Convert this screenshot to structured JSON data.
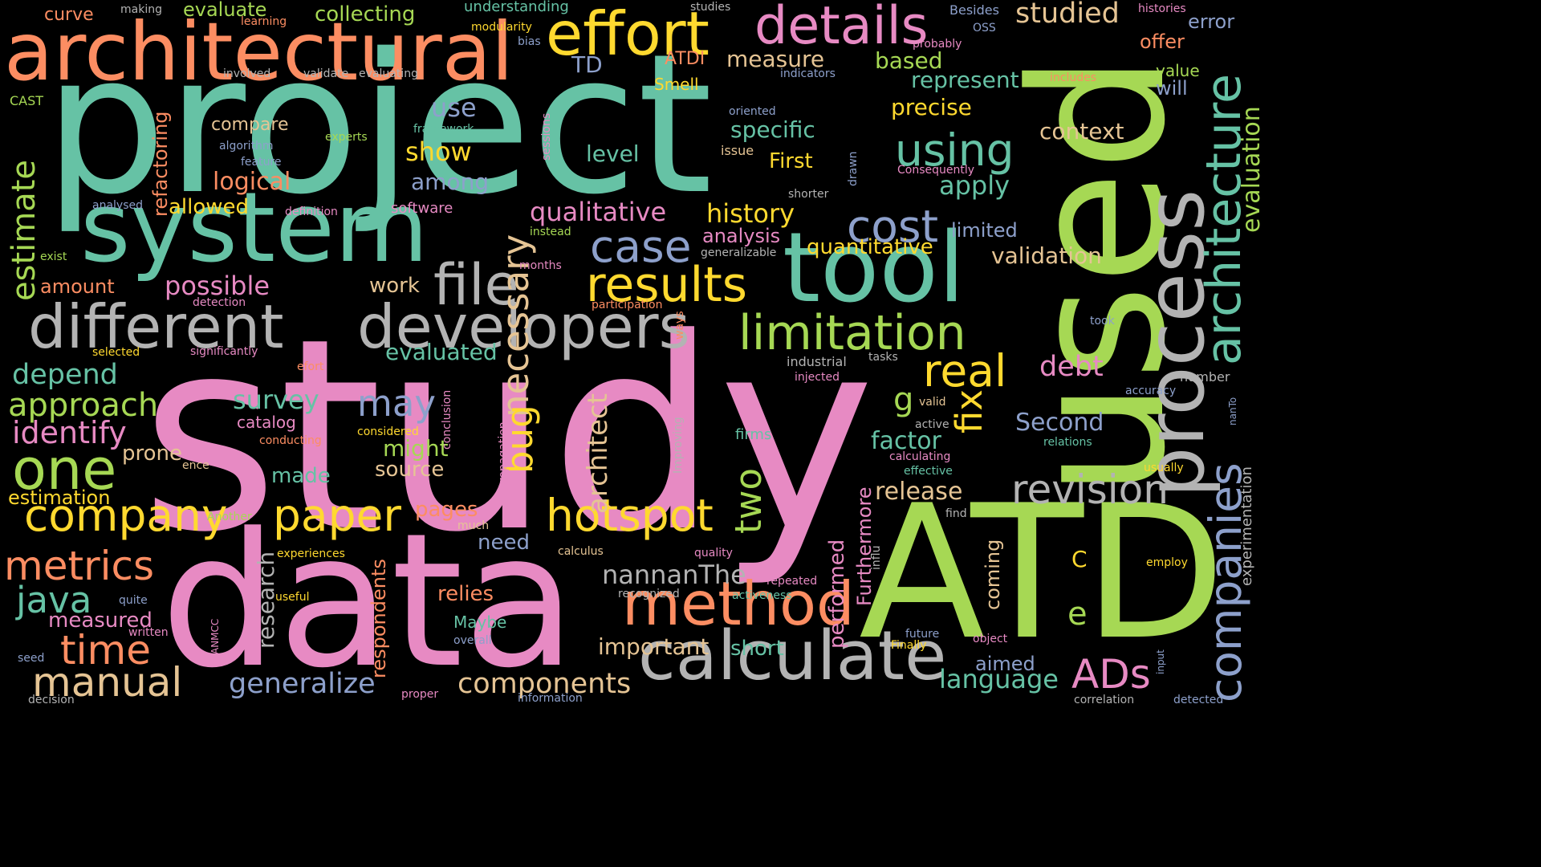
{
  "palette": {
    "pink": "#e78ac3",
    "teal": "#66c2a5",
    "lime": "#a6d854",
    "yellow": "#ffd92f",
    "orange": "#fc8d62",
    "lavender": "#8da0cb",
    "gray": "#b3b3b3",
    "tan": "#e5c494"
  },
  "words": [
    "study",
    "project",
    "ATD",
    "data",
    "used",
    "system",
    "tool",
    "architectural",
    "process",
    "calculate",
    "effort",
    "different",
    "developers",
    "method",
    "file",
    "details",
    "results",
    "limitation",
    "architecture",
    "revision",
    "hotspot",
    "companies",
    "company",
    "cost",
    "one",
    "paper",
    "case",
    "using",
    "real",
    "metrics",
    "time",
    "manual",
    "java",
    "approach",
    "ADs",
    "fix",
    "necessary",
    "bug",
    "two",
    "may",
    "identify",
    "depend",
    "estimate",
    "generalize",
    "components",
    "studied",
    "evaluation",
    "possible",
    "history",
    "language",
    "release",
    "survey",
    "nannanThe",
    "evaluated",
    "important",
    "qualitative",
    "logical",
    "quantitative",
    "validation",
    "factor",
    "debt",
    "architect",
    "research",
    "performed",
    "respondents",
    "Second",
    "apply",
    "precise",
    "represent",
    "context",
    "show",
    "among",
    "use",
    "measure",
    "allowed",
    "refactoring",
    "amount",
    "estimation",
    "measured",
    "might",
    "source",
    "made",
    "pages",
    "relies",
    "Maybe",
    "need",
    "prone",
    "work",
    "level",
    "specific",
    "First",
    "analysis",
    "limited",
    "short",
    "aimed",
    "coming",
    "Furthermore",
    "collecting",
    "evaluate",
    "curve",
    "understanding",
    "based",
    "TD",
    "ATDI",
    "Smell",
    "offer",
    "error",
    "will",
    "value",
    "compare",
    "experimentation",
    "g",
    "C",
    "e",
    "making",
    "learning",
    "studies",
    "modularity",
    "bias",
    "involved",
    "validate",
    "evaluating",
    "indicators",
    "CAST",
    "algorithm",
    "feature",
    "framework",
    "experts",
    "oriented",
    "issue",
    "sessions",
    "drawn",
    "Consequently",
    "shorter",
    "analysed",
    "definition",
    "software",
    "instead",
    "generalizable",
    "exist",
    "months",
    "detection",
    "participation",
    "ways",
    "took",
    "selected",
    "significantly",
    "efort",
    "industrial",
    "tasks",
    "injected",
    "number",
    "accuracy",
    "valid",
    "active",
    "relations",
    "nanTo",
    "conclusion",
    "propagation",
    "Improving",
    "considered",
    "conducting",
    "catalog",
    "firms",
    "ence",
    "calculating",
    "effective",
    "usually",
    "Another",
    "much",
    "find",
    "experiences",
    "calculus",
    "quality",
    "employ",
    "influ",
    "repeated",
    "activeness",
    "recognized",
    "useful",
    "quite",
    "written",
    "ANMCC",
    "overall",
    "future",
    "Finally",
    "object",
    "input",
    "seed",
    "decision",
    "proper",
    "information",
    "detected",
    "correlation",
    "Besides",
    "histories",
    "OSS",
    "probably",
    "includes"
  ]
}
